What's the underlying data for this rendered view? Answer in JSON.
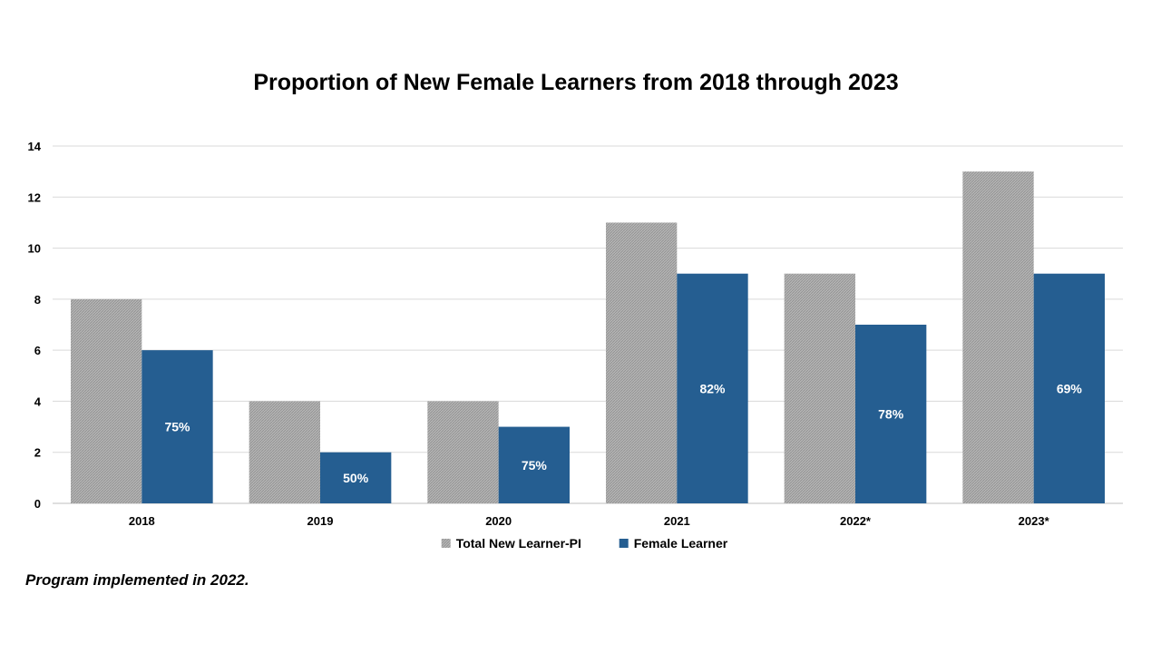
{
  "chart_data": {
    "type": "bar",
    "title": "Proportion of New Female Learners from 2018 through 2023",
    "xlabel": "",
    "ylabel": "",
    "categories": [
      "2018",
      "2019",
      "2020",
      "2021",
      "2022*",
      "2023*"
    ],
    "series": [
      {
        "name": "Total New Learner-PI",
        "values": [
          8,
          4,
          4,
          11,
          9,
          13
        ],
        "color": "#a6a6a6",
        "pattern": "hatched"
      },
      {
        "name": "Female Learner",
        "values": [
          6,
          2,
          3,
          9,
          7,
          9
        ],
        "color": "#255e91"
      }
    ],
    "data_labels": [
      "75%",
      "50%",
      "75%",
      "82%",
      "78%",
      "69%"
    ],
    "y_ticks": [
      "0",
      "2",
      "4",
      "6",
      "8",
      "10",
      "12",
      "14"
    ],
    "ylim": [
      0,
      14
    ],
    "grid": true,
    "legend_placement": "bottom"
  },
  "footnote": "Program implemented in 2022."
}
